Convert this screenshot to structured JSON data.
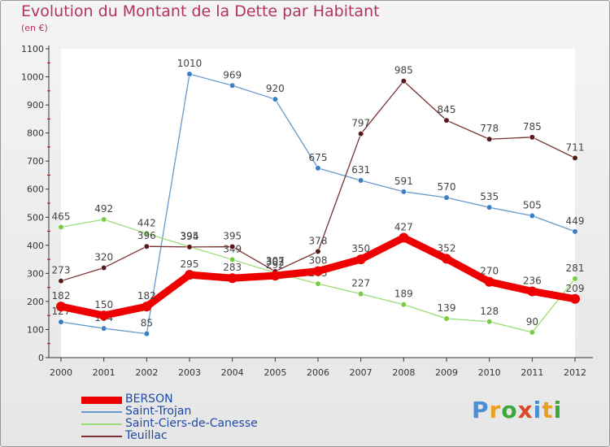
{
  "header": {
    "title": "Evolution du Montant de la Dette par Habitant",
    "subtitle": "(en €)"
  },
  "logo": {
    "letters": [
      "P",
      "r",
      "o",
      "x",
      "i",
      "t",
      "i"
    ],
    "colors": [
      "#4a8fd6",
      "#e8a020",
      "#3aa83a",
      "#d84a2a",
      "#4a8fd6",
      "#e8a020",
      "#3aa83a"
    ]
  },
  "chart_data": {
    "type": "line",
    "x": [
      "2000",
      "2001",
      "2002",
      "2003",
      "2004",
      "2005",
      "2006",
      "2007",
      "2008",
      "2009",
      "2010",
      "2011",
      "2012"
    ],
    "ylim": [
      0,
      1100
    ],
    "yticks": [
      0,
      100,
      200,
      300,
      400,
      500,
      600,
      700,
      800,
      900,
      1000,
      1100
    ],
    "grid": false,
    "legend_position": "bottom-left",
    "series": [
      {
        "name": "Saint-Trojan",
        "color": "#6699cc",
        "marker": "#3a7ec4",
        "values": [
          127,
          104,
          85,
          1010,
          969,
          920,
          675,
          631,
          591,
          570,
          535,
          505,
          449
        ]
      },
      {
        "name": "Saint-Ciers-de-Canesse",
        "color": "#99dd77",
        "marker": "#77cc44",
        "values": [
          465,
          492,
          442,
          395,
          349,
          302,
          263,
          227,
          189,
          139,
          128,
          90,
          281
        ]
      },
      {
        "name": "Teuillac",
        "color": "#7a3030",
        "marker": "#5a1a1a",
        "values": [
          273,
          320,
          396,
          394,
          395,
          307,
          378,
          797,
          985,
          845,
          778,
          785,
          711
        ]
      },
      {
        "name": "BERSON",
        "color": "#ee0000",
        "marker": "#ee0000",
        "values": [
          182,
          150,
          182,
          295,
          283,
          292,
          308,
          350,
          427,
          352,
          270,
          236,
          209
        ]
      }
    ],
    "legend_order": [
      "BERSON",
      "Saint-Trojan",
      "Saint-Ciers-de-Canesse",
      "Teuillac"
    ]
  }
}
